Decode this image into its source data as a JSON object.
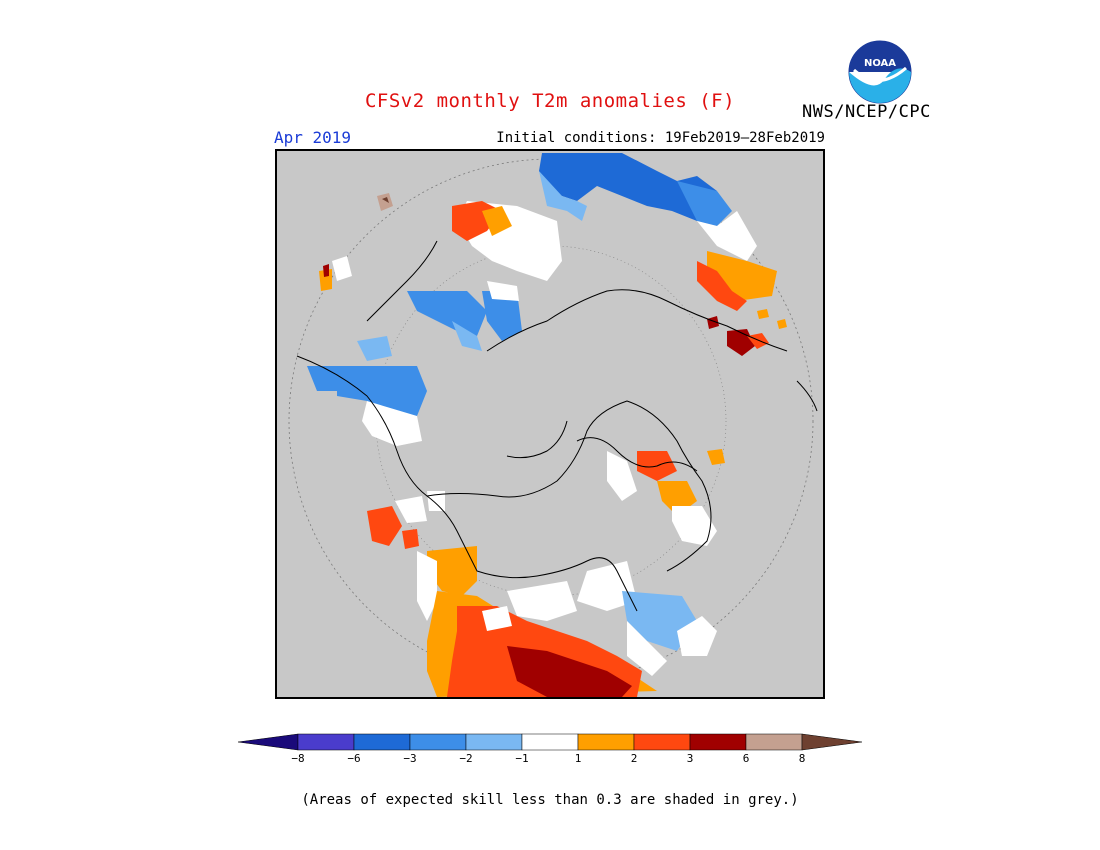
{
  "header": {
    "title": "CFSv2 monthly T2m anomalies (F)",
    "agency": "NWS/NCEP/CPC",
    "logo_text": "NOAA",
    "month": "Apr 2019",
    "initial_conditions": "Initial conditions: 19Feb2019–28Feb2019"
  },
  "legend": {
    "colors": [
      "#1a0a7a",
      "#4a3ccc",
      "#1e6ad6",
      "#3d8ee8",
      "#7ab8f2",
      "#ffffff",
      "#ff9f00",
      "#ff4810",
      "#a00000",
      "#c4a090",
      "#6e4030"
    ],
    "labels": [
      "−8",
      "−6",
      "−3",
      "−2",
      "−1",
      "1",
      "2",
      "3",
      "6",
      "8"
    ]
  },
  "footnote": "(Areas of expected skill less than 0.3 are shaded in grey.)",
  "colors": {
    "no_skill": "#c8c8c8",
    "title": "#e01010",
    "month": "#1a3bd6"
  }
}
